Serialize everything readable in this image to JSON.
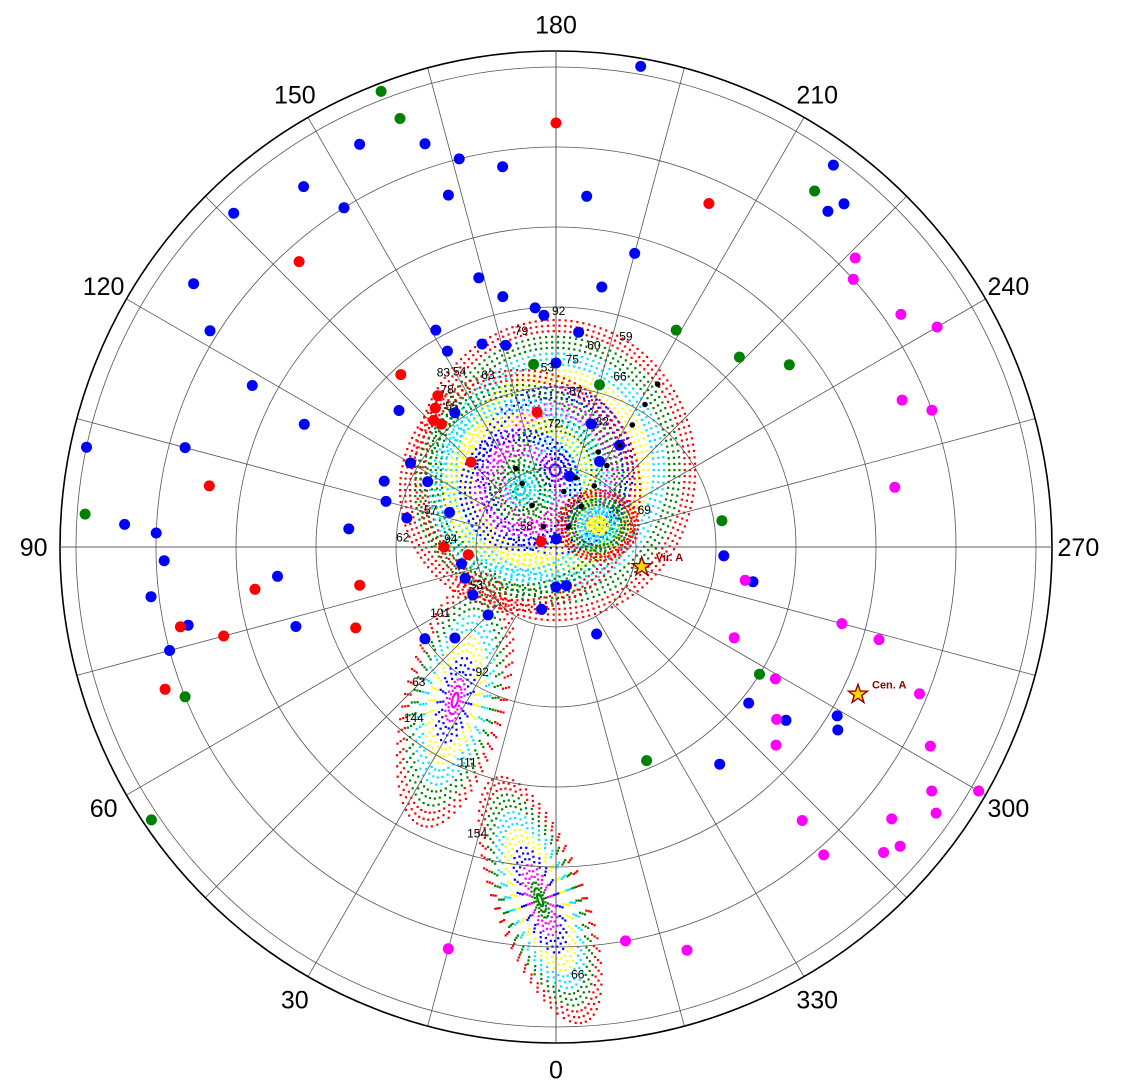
{
  "chart_data": {
    "type": "scatter",
    "projection": "polar",
    "angle_ticks": [
      0,
      30,
      60,
      90,
      120,
      150,
      180,
      210,
      240,
      270,
      300,
      330
    ],
    "angle_tick_labels": [
      "0",
      "30",
      "60",
      "90",
      "120",
      "150",
      "180",
      "210",
      "240",
      "270",
      "300",
      "330"
    ],
    "spoke_step_deg": 15,
    "rings": [
      1,
      2,
      3,
      4,
      5,
      6
    ],
    "r_max": 6.2,
    "grid": true,
    "colors": {
      "blue": "#0000ff",
      "red": "#ff0000",
      "green": "#008000",
      "magenta": "#ff00ff",
      "black": "#000000",
      "marker": "#8b0000",
      "marker_fill": "#ffd700",
      "grid": "#555555",
      "axis": "#000000"
    },
    "series": [
      {
        "color": "blue",
        "points": [
          [
            0.1,
            182
          ],
          [
            -0.5,
            180
          ],
          [
            0.9,
            191
          ],
          [
            1.6,
            196
          ],
          [
            1.5,
            212
          ],
          [
            1.2,
            207
          ],
          [
            2.3,
            180
          ],
          [
            2.9,
            177
          ],
          [
            3.2,
            168
          ],
          [
            3.5,
            164
          ],
          [
            3.0,
            175
          ],
          [
            2.7,
            186
          ],
          [
            3.8,
            195
          ],
          [
            3.3,
            190
          ],
          [
            2.6,
            166
          ],
          [
            2.7,
            160
          ],
          [
            2.8,
            151
          ],
          [
            3.1,
            151
          ],
          [
            2.1,
            143
          ],
          [
            2.6,
            131
          ],
          [
            2.1,
            120
          ],
          [
            1.8,
            117
          ],
          [
            2.3,
            111
          ],
          [
            2.2,
            105
          ],
          [
            1.4,
            108
          ],
          [
            1.9,
            101
          ],
          [
            1.2,
            80
          ],
          [
            1.2,
            71
          ],
          [
            1.2,
            60
          ],
          [
            1.2,
            45
          ],
          [
            0.8,
            13
          ],
          [
            0.5,
            345
          ],
          [
            1.2,
            335
          ],
          [
            2.5,
            280
          ],
          [
            2.1,
            273
          ],
          [
            3.6,
            307
          ],
          [
            3.1,
            309
          ],
          [
            3.4,
            323
          ],
          [
            4.1,
            301
          ],
          [
            4.2,
            303
          ],
          [
            4.4,
            185
          ],
          [
            4.8,
            172
          ],
          [
            4.6,
            163
          ],
          [
            5.0,
            166
          ],
          [
            5.3,
            162
          ],
          [
            5.6,
            154
          ],
          [
            5.0,
            148
          ],
          [
            5.5,
            145
          ],
          [
            5.8,
            136
          ],
          [
            5.6,
            126
          ],
          [
            5.1,
            122
          ],
          [
            4.3,
            118
          ],
          [
            3.5,
            116
          ],
          [
            4.8,
            105
          ],
          [
            2.6,
            95
          ],
          [
            5.9,
            216
          ],
          [
            5.6,
            220
          ],
          [
            5.4,
            219
          ],
          [
            6.1,
            190
          ],
          [
            6.0,
            102
          ],
          [
            5.4,
            93
          ],
          [
            5.0,
            92
          ],
          [
            4.9,
            88
          ],
          [
            5.1,
            83
          ],
          [
            4.7,
            78
          ],
          [
            3.5,
            84
          ],
          [
            3.4,
            73
          ],
          [
            2.0,
            55
          ],
          [
            1.7,
            48
          ],
          [
            5.0,
            75
          ]
        ]
      },
      {
        "color": "red",
        "points": [
          [
            0.2,
            110
          ],
          [
            1.7,
            172
          ],
          [
            1.5,
            135
          ],
          [
            1.1,
            85
          ],
          [
            1.4,
            90
          ],
          [
            2.3,
            139
          ],
          [
            2.1,
            137
          ],
          [
            2.2,
            136
          ],
          [
            2.4,
            142
          ],
          [
            2.9,
            138
          ],
          [
            5.3,
            180
          ],
          [
            4.7,
            204
          ],
          [
            4.8,
            138
          ],
          [
            4.4,
            100
          ],
          [
            3.8,
            82
          ],
          [
            2.5,
            79
          ],
          [
            4.8,
            78
          ],
          [
            5.2,
            70
          ],
          [
            4.3,
            75
          ],
          [
            2.7,
            68
          ]
        ]
      },
      {
        "color": "green",
        "points": [
          [
            2.3,
            173
          ],
          [
            2.1,
            195
          ],
          [
            3.1,
            209
          ],
          [
            3.3,
            224
          ],
          [
            3.7,
            232
          ],
          [
            2.1,
            261
          ],
          [
            3.0,
            302
          ],
          [
            2.9,
            337
          ],
          [
            6.1,
            159
          ],
          [
            5.7,
            160
          ],
          [
            5.5,
            216
          ],
          [
            5.9,
            94
          ],
          [
            5.0,
            68
          ],
          [
            6.1,
            56
          ]
        ]
      },
      {
        "color": "magenta",
        "points": [
          [
            2.4,
            280
          ],
          [
            2.5,
            297
          ],
          [
            3.2,
            301
          ],
          [
            3.5,
            308
          ],
          [
            3.7,
            285
          ],
          [
            4.3,
            260
          ],
          [
            4.7,
            247
          ],
          [
            5.0,
            250
          ],
          [
            5.5,
            240
          ],
          [
            5.2,
            236
          ],
          [
            4.9,
            292
          ],
          [
            4.2,
            286
          ],
          [
            3.7,
            312
          ],
          [
            5.3,
            298
          ],
          [
            5.6,
            303
          ],
          [
            5.4,
            309
          ],
          [
            4.6,
            318
          ],
          [
            5.1,
            319
          ],
          [
            5.6,
            313
          ],
          [
            5.7,
            311
          ],
          [
            5.8,
            305
          ],
          [
            6.1,
            300
          ],
          [
            5.2,
            226
          ],
          [
            5.0,
            228
          ],
          [
            5.3,
            342
          ],
          [
            5.0,
            350
          ],
          [
            5.2,
            15
          ]
        ]
      },
      {
        "color": "black",
        "points": [
          [
            0.3,
            212
          ],
          [
            0.6,
            212
          ],
          [
            0.9,
            212
          ],
          [
            1.2,
            212
          ],
          [
            1.5,
            212
          ],
          [
            1.8,
            212
          ],
          [
            2.1,
            212
          ],
          [
            2.4,
            212
          ],
          [
            0.3,
            148
          ],
          [
            0.6,
            150
          ],
          [
            0.9,
            152
          ],
          [
            1.1,
            153
          ],
          [
            0.7,
            188
          ],
          [
            0.9,
            196
          ],
          [
            1.3,
            204
          ]
        ]
      }
    ],
    "point_labels": [
      {
        "text": "92",
        "r": 2.9,
        "a": 179
      },
      {
        "text": "79",
        "r": 2.7,
        "a": 169
      },
      {
        "text": "59",
        "r": 2.7,
        "a": 197
      },
      {
        "text": "60",
        "r": 2.5,
        "a": 189
      },
      {
        "text": "75",
        "r": 2.3,
        "a": 183
      },
      {
        "text": "53",
        "r": 2.2,
        "a": 175
      },
      {
        "text": "66",
        "r": 2.2,
        "a": 199
      },
      {
        "text": "57",
        "r": 1.9,
        "a": 185
      },
      {
        "text": "82",
        "r": 1.6,
        "a": 198
      },
      {
        "text": "72",
        "r": 1.5,
        "a": 176
      },
      {
        "text": "83",
        "r": 2.6,
        "a": 145
      },
      {
        "text": "78",
        "r": 2.4,
        "a": 143
      },
      {
        "text": "54",
        "r": 2.5,
        "a": 149
      },
      {
        "text": "63",
        "r": 2.3,
        "a": 156
      },
      {
        "text": "55",
        "r": 2.2,
        "a": 141
      },
      {
        "text": "57",
        "r": 1.7,
        "a": 104
      },
      {
        "text": "62",
        "r": 2.0,
        "a": 92
      },
      {
        "text": "94",
        "r": 1.4,
        "a": 92
      },
      {
        "text": "58",
        "r": 0.5,
        "a": 115
      },
      {
        "text": "53",
        "r": 1.2,
        "a": 64
      },
      {
        "text": "101",
        "r": 1.8,
        "a": 61
      },
      {
        "text": "63",
        "r": 2.5,
        "a": 46
      },
      {
        "text": "92",
        "r": 1.9,
        "a": 32
      },
      {
        "text": "144",
        "r": 2.9,
        "a": 41
      },
      {
        "text": "111",
        "r": 3.0,
        "a": 24
      },
      {
        "text": "154",
        "r": 3.8,
        "a": 17
      },
      {
        "text": "66",
        "r": 5.4,
        "a": 358
      },
      {
        "text": "69",
        "r": 1.1,
        "a": 248
      }
    ],
    "markers": [
      {
        "name": "Vir. A",
        "r": 1.1,
        "a": 283
      },
      {
        "name": "Cen. A",
        "r": 4.2,
        "a": 296
      }
    ]
  }
}
